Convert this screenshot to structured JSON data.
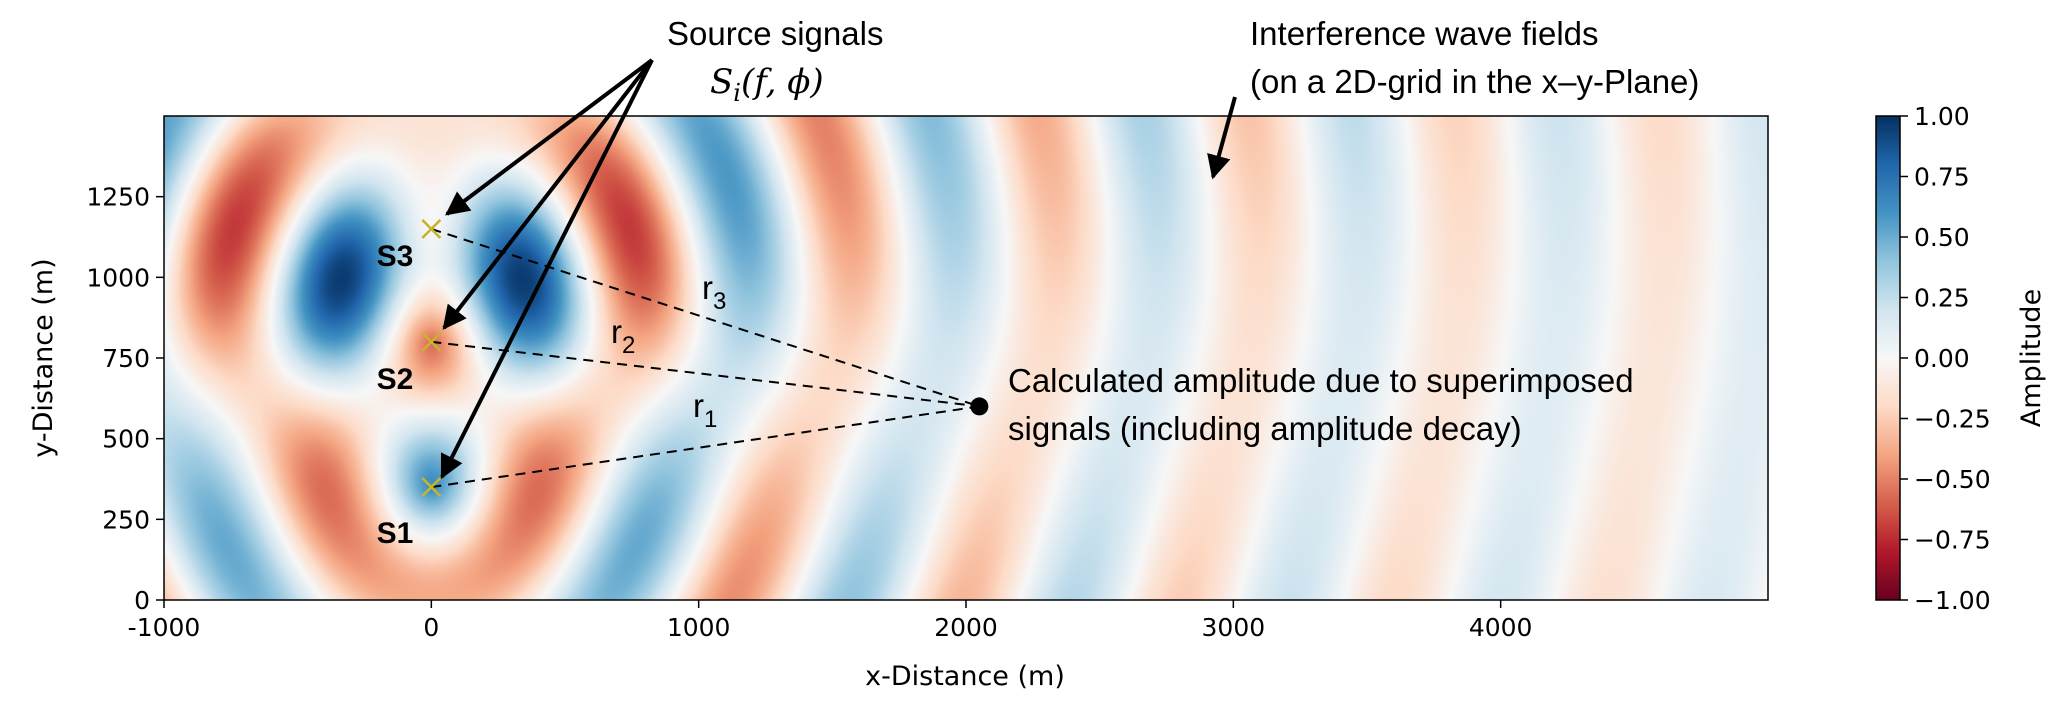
{
  "chart_data": {
    "type": "heatmap",
    "title": "",
    "xlabel": "x-Distance (m)",
    "ylabel": "y-Distance (m)",
    "xlim": [
      -1000,
      5000
    ],
    "ylim": [
      0,
      1500
    ],
    "x_ticks": [
      -1000,
      0,
      1000,
      2000,
      3000,
      4000
    ],
    "x_tick_labels": [
      "-1000",
      "0",
      "1000",
      "2000",
      "3000",
      "4000"
    ],
    "y_ticks": [
      0,
      250,
      500,
      750,
      1000,
      1250
    ],
    "y_tick_labels": [
      "0",
      "250",
      "500",
      "750",
      "1000",
      "1250"
    ],
    "colormap": "RdBu",
    "colorbar": {
      "label": "Amplitude",
      "range": [
        -1.0,
        1.0
      ],
      "ticks": [
        1.0,
        0.75,
        0.5,
        0.25,
        0.0,
        -0.25,
        -0.5,
        -0.75,
        -1.0
      ],
      "tick_labels": [
        "1.00",
        "0.75",
        "0.50",
        "0.25",
        "0.00",
        "−0.25",
        "−0.50",
        "−0.75",
        "−1.00"
      ]
    },
    "sources": [
      {
        "name": "S1",
        "x": 0,
        "y": 350
      },
      {
        "name": "S2",
        "x": 0,
        "y": 800
      },
      {
        "name": "S3",
        "x": 0,
        "y": 1150
      }
    ],
    "receiver": {
      "x": 2050,
      "y": 600
    },
    "distance_labels": [
      {
        "base": "r",
        "sub": "1",
        "source": "S1"
      },
      {
        "base": "r",
        "sub": "2",
        "source": "S2"
      },
      {
        "base": "r",
        "sub": "3",
        "source": "S3"
      }
    ],
    "colors": {
      "source_marker": "#c8b428",
      "dark_red": "#67001f",
      "dark_blue": "#053061"
    }
  },
  "annotations": {
    "source_signals_title": "Source signals",
    "source_signals_formula_S": "S",
    "source_signals_formula_sub": "i",
    "source_signals_formula_args": "(f, ϕ)",
    "interference_line1": "Interference wave fields",
    "interference_line2": "(on a 2D-grid in the x–y-Plane)",
    "receiver_line1": "Calculated amplitude due to superimposed",
    "receiver_line2": "signals (including amplitude decay)"
  }
}
